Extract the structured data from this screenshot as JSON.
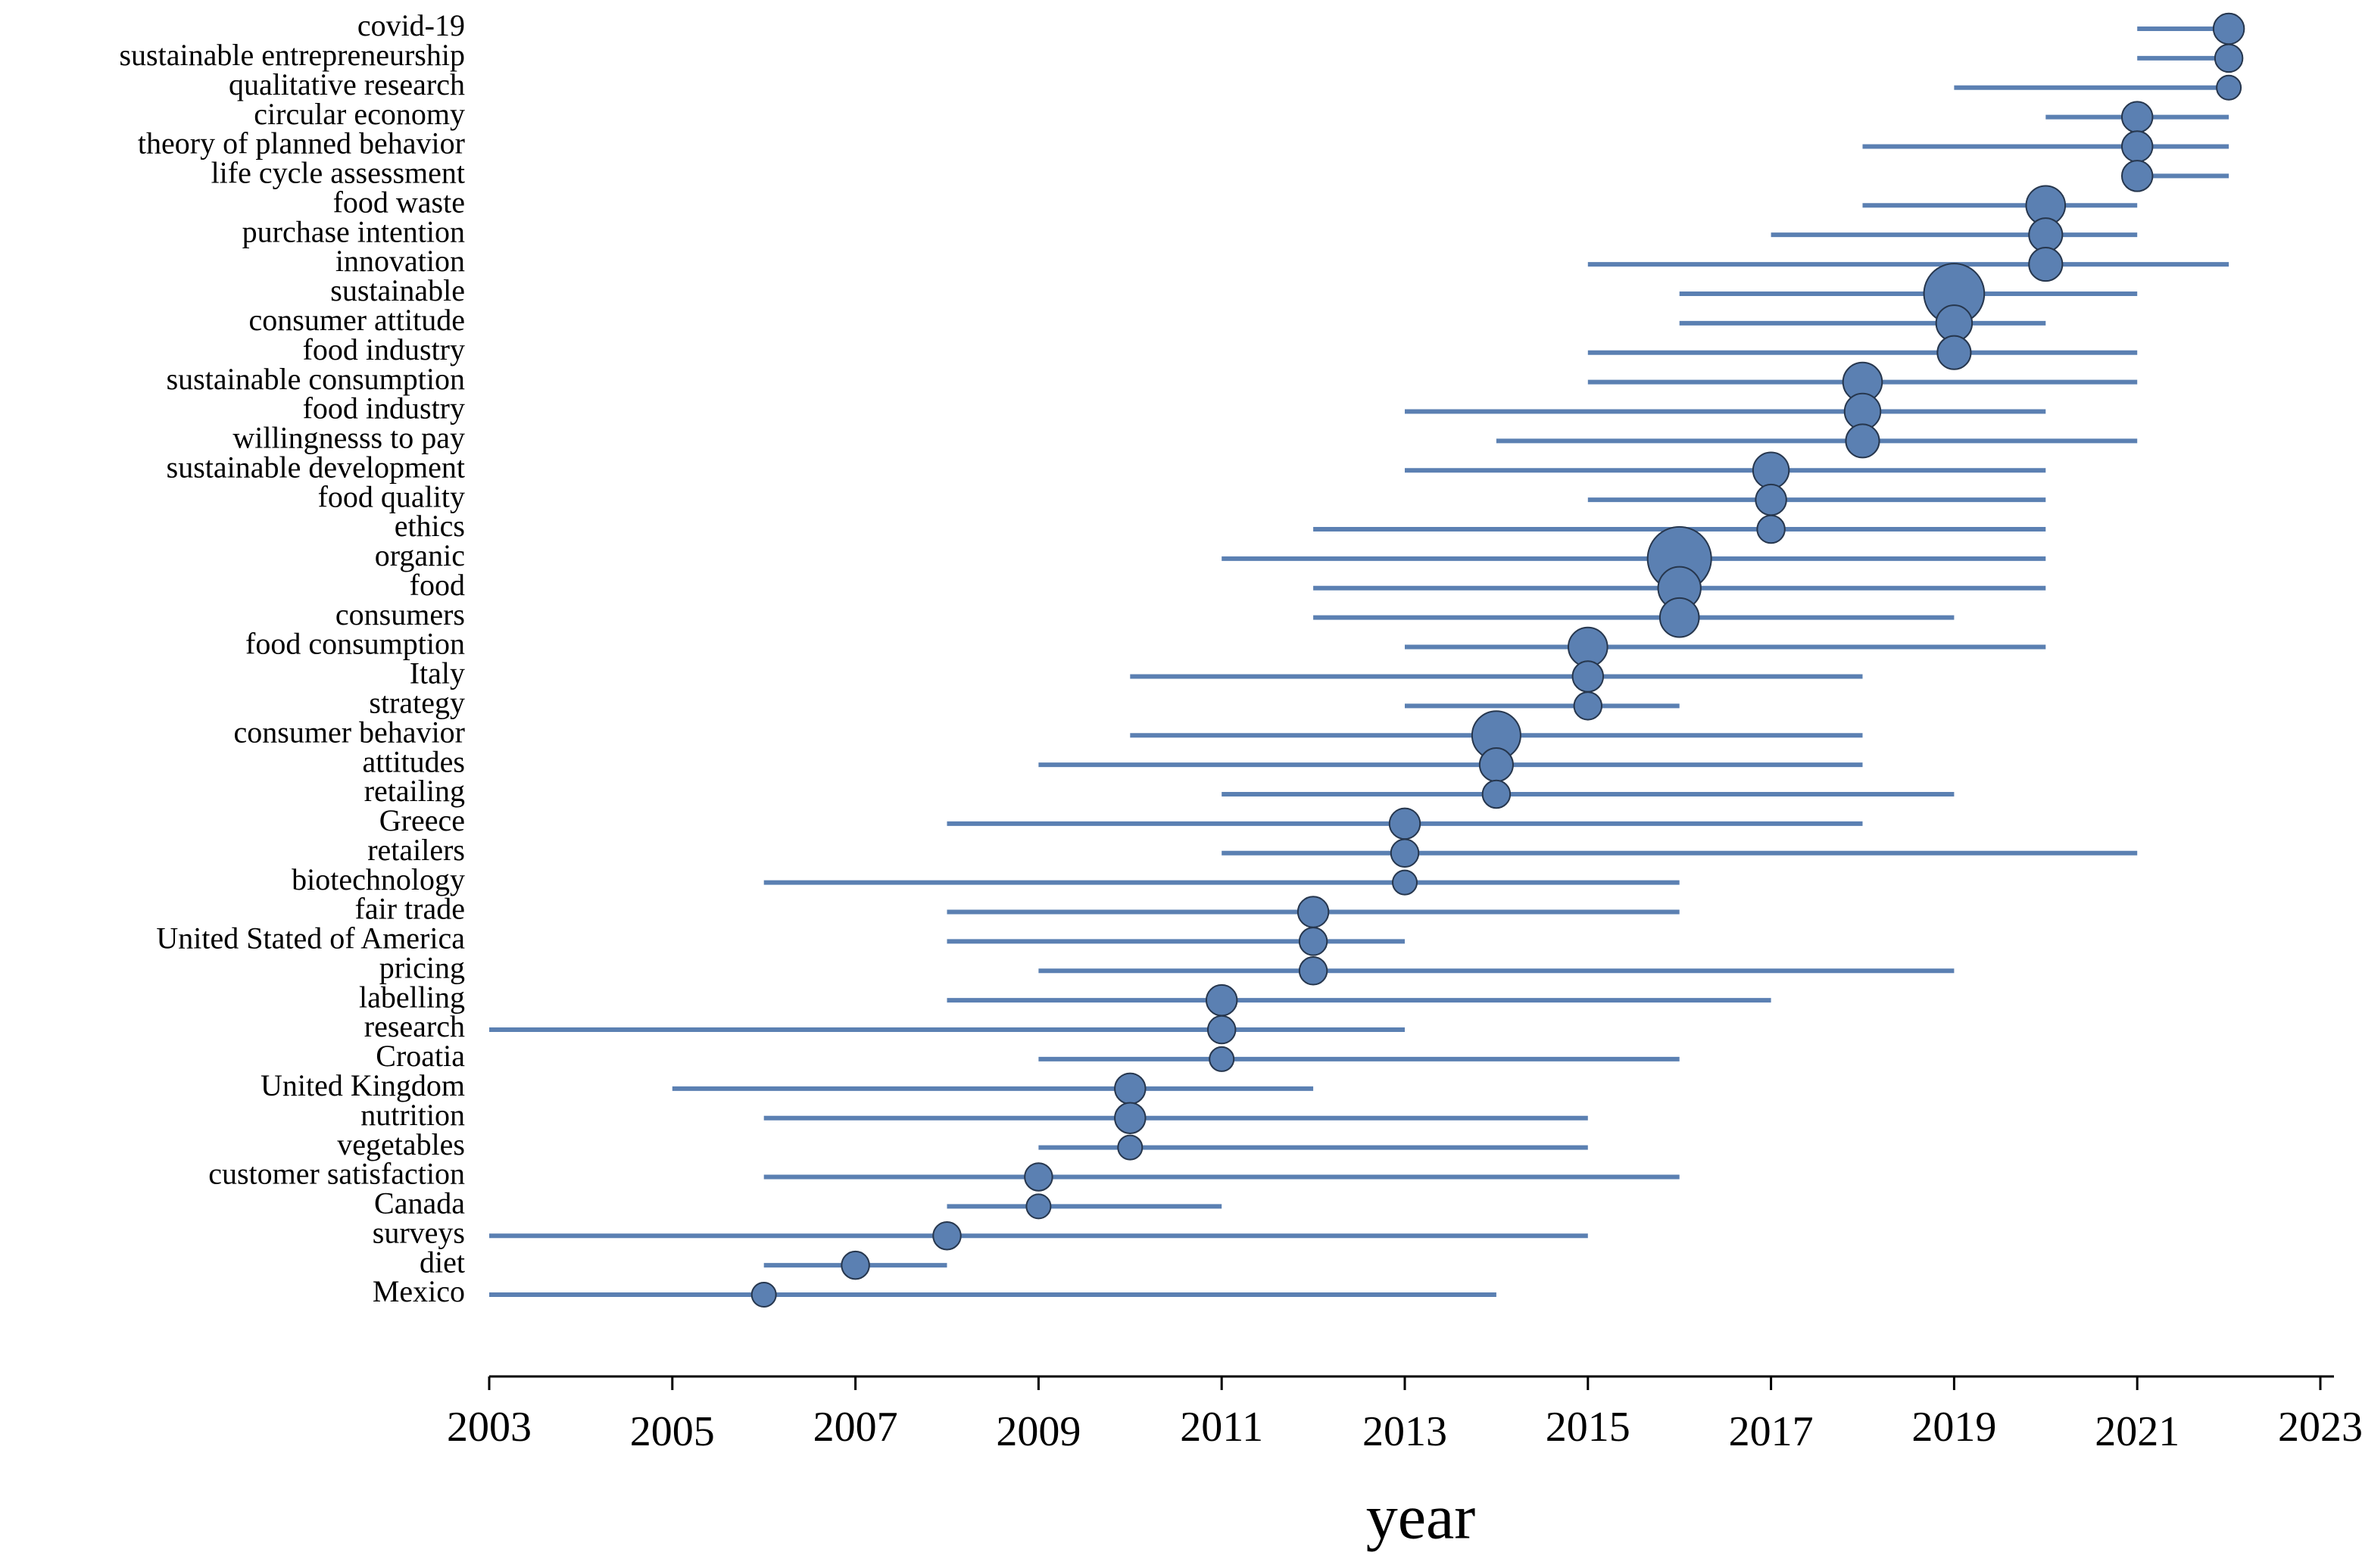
{
  "chart_data": {
    "type": "trend",
    "x_label": "year",
    "color": "#5b80b2",
    "xlim": [
      2003,
      2023
    ],
    "xticks": [
      2003,
      2005,
      2007,
      2009,
      2011,
      2013,
      2015,
      2017,
      2019,
      2021,
      2023
    ],
    "categories": [
      "covid-19",
      "sustainable entrepreneurship",
      "qualitative research",
      "circular economy",
      "theory of planned behavior",
      "life cycle assessment",
      "food waste",
      "purchase intention",
      "innovation",
      "sustainable",
      "consumer attitude",
      "food industry",
      "sustainable consumption",
      "food industry",
      "willingnesss to pay",
      "sustainable development",
      "food quality",
      "ethics",
      "organic",
      "food",
      "consumers",
      "food consumption",
      "Italy",
      "strategy",
      "consumer behavior",
      "attitudes",
      "retailing",
      "Greece",
      "retailers",
      "biotechnology",
      "fair trade",
      "United Stated of America",
      "pricing",
      "labelling",
      "research",
      "Croatia",
      "United Kingdom",
      "nutrition",
      "vegetables",
      "customer satisfaction",
      "Canada",
      "surveys",
      "diet",
      "Mexico"
    ],
    "start": [
      2021,
      2021,
      2019,
      2020,
      2018,
      2021,
      2018,
      2017,
      2015,
      2016,
      2016,
      2015,
      2015,
      2013,
      2014,
      2013,
      2015,
      2012,
      2011,
      2012,
      2012,
      2013,
      2010,
      2013,
      2010,
      2009,
      2011,
      2008,
      2011,
      2006,
      2008,
      2008,
      2009,
      2008,
      2003,
      2009,
      2005,
      2006,
      2009,
      2006,
      2008,
      2003,
      2006,
      2003
    ],
    "median": [
      2022,
      2022,
      2022,
      2021,
      2021,
      2021,
      2020,
      2020,
      2020,
      2019,
      2019,
      2019,
      2018,
      2018,
      2018,
      2017,
      2017,
      2017,
      2016,
      2016,
      2016,
      2015,
      2015,
      2015,
      2014,
      2014,
      2014,
      2013,
      2013,
      2013,
      2012,
      2012,
      2012,
      2011,
      2011,
      2011,
      2010,
      2010,
      2010,
      2009,
      2009,
      2008,
      2007,
      2006
    ],
    "end": [
      2022,
      2022,
      2022,
      2022,
      2022,
      2022,
      2021,
      2021,
      2022,
      2021,
      2020,
      2021,
      2021,
      2020,
      2021,
      2020,
      2020,
      2020,
      2020,
      2020,
      2019,
      2020,
      2018,
      2016,
      2018,
      2018,
      2019,
      2018,
      2021,
      2016,
      2016,
      2013,
      2019,
      2017,
      2013,
      2016,
      2012,
      2015,
      2015,
      2016,
      2011,
      2015,
      2008,
      2014
    ],
    "size": [
      16,
      13,
      10,
      16,
      16,
      16,
      26,
      19,
      19,
      62,
      22,
      19,
      26,
      22,
      19,
      22,
      16,
      13,
      69,
      31,
      26,
      26,
      16,
      13,
      40,
      19,
      13,
      16,
      13,
      10,
      16,
      13,
      13,
      16,
      13,
      10,
      16,
      16,
      10,
      13,
      10,
      13,
      13,
      10
    ]
  }
}
